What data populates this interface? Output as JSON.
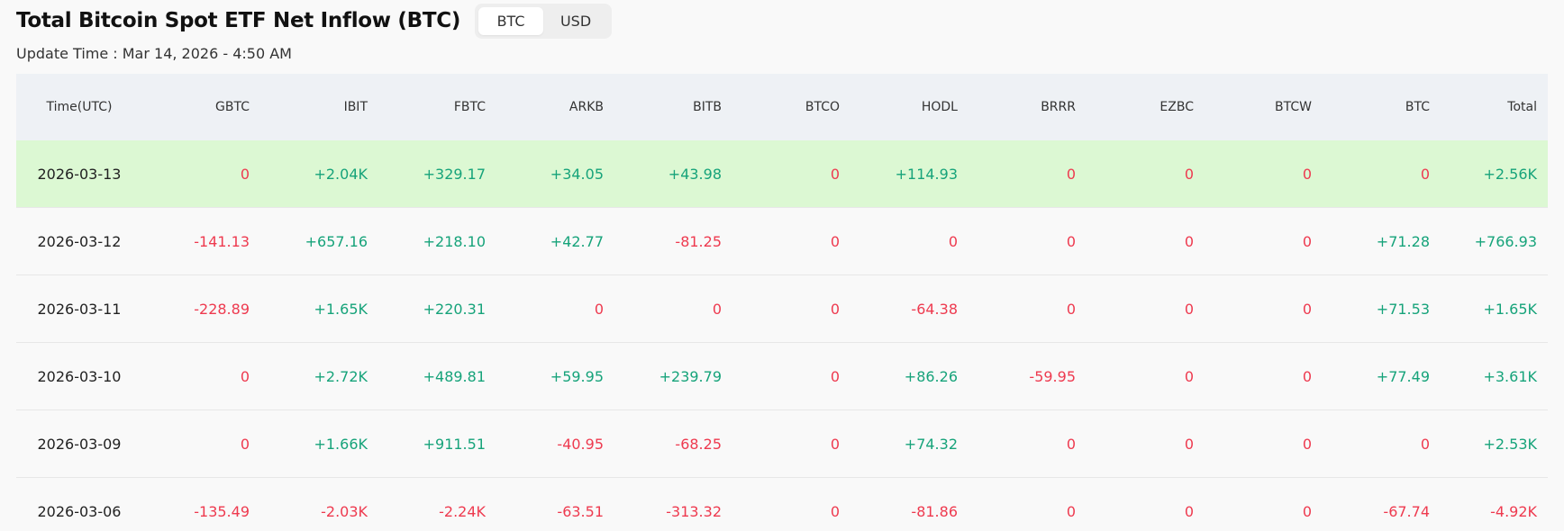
{
  "header": {
    "title": "Total Bitcoin Spot ETF Net Inflow (BTC)",
    "toggle": [
      {
        "label": "BTC",
        "active": true
      },
      {
        "label": "USD",
        "active": false
      }
    ],
    "update_time": "Update Time : Mar 14, 2026 - 4:50 AM"
  },
  "table": {
    "columns": [
      "Time(UTC)",
      "GBTC",
      "IBIT",
      "FBTC",
      "ARKB",
      "BITB",
      "BTCO",
      "HODL",
      "BRRR",
      "EZBC",
      "BTCW",
      "BTC",
      "Total"
    ],
    "rows": [
      {
        "highlight": true,
        "cells": [
          "2026-03-13",
          "0",
          "+2.04K",
          "+329.17",
          "+34.05",
          "+43.98",
          "0",
          "+114.93",
          "0",
          "0",
          "0",
          "0",
          "+2.56K"
        ]
      },
      {
        "highlight": false,
        "cells": [
          "2026-03-12",
          "-141.13",
          "+657.16",
          "+218.10",
          "+42.77",
          "-81.25",
          "0",
          "0",
          "0",
          "0",
          "0",
          "+71.28",
          "+766.93"
        ]
      },
      {
        "highlight": false,
        "cells": [
          "2026-03-11",
          "-228.89",
          "+1.65K",
          "+220.31",
          "0",
          "0",
          "0",
          "-64.38",
          "0",
          "0",
          "0",
          "+71.53",
          "+1.65K"
        ]
      },
      {
        "highlight": false,
        "cells": [
          "2026-03-10",
          "0",
          "+2.72K",
          "+489.81",
          "+59.95",
          "+239.79",
          "0",
          "+86.26",
          "-59.95",
          "0",
          "0",
          "+77.49",
          "+3.61K"
        ]
      },
      {
        "highlight": false,
        "cells": [
          "2026-03-09",
          "0",
          "+1.66K",
          "+911.51",
          "-40.95",
          "-68.25",
          "0",
          "+74.32",
          "0",
          "0",
          "0",
          "0",
          "+2.53K"
        ]
      },
      {
        "highlight": false,
        "cells": [
          "2026-03-06",
          "-135.49",
          "-2.03K",
          "-2.24K",
          "-63.51",
          "-313.32",
          "0",
          "-81.86",
          "0",
          "0",
          "0",
          "-67.74",
          "-4.92K"
        ]
      }
    ]
  },
  "colors": {
    "positive": "#16a37a",
    "negative": "#ee3a4f",
    "highlight_row": "#dcf8d3",
    "header_bg": "#eef1f5"
  }
}
